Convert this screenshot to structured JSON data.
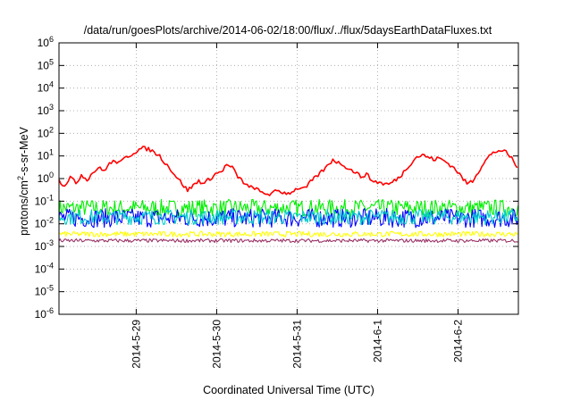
{
  "chart_data": {
    "type": "line",
    "title": "/data/run/goesPlots/archive/2014-06-02/18:00/flux/../flux/5daysEarthDataFluxes.txt",
    "xlabel": "Coordinated Universal Time (UTC)",
    "ylabel": {
      "base": "protons/cm",
      "sup": "2",
      "rest": "-s-sr-MeV"
    },
    "y_scale": "log",
    "ylim": [
      1e-06,
      1000000.0
    ],
    "y_ticks": [
      {
        "base": "10",
        "exp": "6",
        "value": 1000000.0
      },
      {
        "base": "10",
        "exp": "5",
        "value": 100000.0
      },
      {
        "base": "10",
        "exp": "4",
        "value": 10000.0
      },
      {
        "base": "10",
        "exp": "3",
        "value": 1000.0
      },
      {
        "base": "10",
        "exp": "2",
        "value": 100.0
      },
      {
        "base": "10",
        "exp": "1",
        "value": 10.0
      },
      {
        "base": "10",
        "exp": "0",
        "value": 1.0
      },
      {
        "base": "10",
        "exp": "-1",
        "value": 0.1
      },
      {
        "base": "10",
        "exp": "-2",
        "value": 0.01
      },
      {
        "base": "10",
        "exp": "-3",
        "value": 0.001
      },
      {
        "base": "10",
        "exp": "-4",
        "value": 0.0001
      },
      {
        "base": "10",
        "exp": "-5",
        "value": 1e-05
      },
      {
        "base": "10",
        "exp": "-6",
        "value": 1e-06
      }
    ],
    "xlim": [
      "2014-05-28 00:58",
      "2014-06-02 18:00"
    ],
    "x_ticks": [
      "2014-5-29",
      "2014-5-30",
      "2014-5-31",
      "2014-6-1",
      "2014-6-2"
    ],
    "grid": true,
    "legend": "none",
    "series": [
      {
        "color": "#ff0000",
        "x": [
          "2014-05-28 01:00",
          "2014-05-28 02:40",
          "2014-05-28 04:20",
          "2014-05-28 06:00",
          "2014-05-28 07:40",
          "2014-05-28 09:20",
          "2014-05-28 11:00",
          "2014-05-28 12:40",
          "2014-05-28 14:20",
          "2014-05-28 16:00",
          "2014-05-28 17:40",
          "2014-05-28 19:20",
          "2014-05-28 21:00",
          "2014-05-28 22:40",
          "2014-05-29 00:20",
          "2014-05-29 02:00",
          "2014-05-29 03:40",
          "2014-05-29 05:20",
          "2014-05-29 07:00",
          "2014-05-29 08:40",
          "2014-05-29 10:20",
          "2014-05-29 12:00",
          "2014-05-29 13:40",
          "2014-05-29 15:20",
          "2014-05-29 17:00",
          "2014-05-29 18:40",
          "2014-05-29 20:20",
          "2014-05-29 22:00",
          "2014-05-29 23:40",
          "2014-05-30 01:20",
          "2014-05-30 03:00",
          "2014-05-30 04:40",
          "2014-05-30 06:20",
          "2014-05-30 08:00",
          "2014-05-30 09:40",
          "2014-05-30 11:20",
          "2014-05-30 13:00",
          "2014-05-30 14:40",
          "2014-05-30 16:20",
          "2014-05-30 18:00",
          "2014-05-30 19:40",
          "2014-05-30 21:20",
          "2014-05-30 23:00",
          "2014-05-31 00:40",
          "2014-05-31 02:20",
          "2014-05-31 04:00",
          "2014-05-31 05:40",
          "2014-05-31 07:20",
          "2014-05-31 09:00",
          "2014-05-31 10:40",
          "2014-05-31 12:20",
          "2014-05-31 14:00",
          "2014-05-31 15:40",
          "2014-05-31 17:20",
          "2014-05-31 19:00",
          "2014-05-31 20:40",
          "2014-05-31 22:20",
          "2014-06-01 00:00",
          "2014-06-01 01:40",
          "2014-06-01 03:20",
          "2014-06-01 05:00",
          "2014-06-01 06:40",
          "2014-06-01 08:20",
          "2014-06-01 10:00",
          "2014-06-01 11:40",
          "2014-06-01 13:20",
          "2014-06-01 15:00",
          "2014-06-01 16:40",
          "2014-06-01 18:20",
          "2014-06-01 20:00",
          "2014-06-01 21:40",
          "2014-06-01 23:20",
          "2014-06-02 01:00",
          "2014-06-02 02:40",
          "2014-06-02 04:20",
          "2014-06-02 06:00",
          "2014-06-02 07:40",
          "2014-06-02 09:20",
          "2014-06-02 11:00",
          "2014-06-02 12:40",
          "2014-06-02 14:20",
          "2014-06-02 16:00",
          "2014-06-02 17:40"
        ],
        "values": [
          0.8,
          0.5,
          1.2,
          0.6,
          1.5,
          0.9,
          1.8,
          3.0,
          2.2,
          4.5,
          6.0,
          5.0,
          9.0,
          12.0,
          18.0,
          22.0,
          20.0,
          15.0,
          10.0,
          5.0,
          2.5,
          1.2,
          0.6,
          0.3,
          0.5,
          0.8,
          0.6,
          1.0,
          1.6,
          2.0,
          4.0,
          3.0,
          1.2,
          0.7,
          0.4,
          0.4,
          0.25,
          0.22,
          0.2,
          0.3,
          0.25,
          0.22,
          0.3,
          0.4,
          0.35,
          0.7,
          1.2,
          2.0,
          3.5,
          7.0,
          5.0,
          4.0,
          2.5,
          2.0,
          1.2,
          1.6,
          0.8,
          0.7,
          0.6,
          0.55,
          0.8,
          1.2,
          2.5,
          5.0,
          9.0,
          11.0,
          9.0,
          7.0,
          8.0,
          6.0,
          4.0,
          2.5,
          1.2,
          0.6,
          0.8,
          2.0,
          5.0,
          10.0,
          15.0,
          18.0,
          14.0,
          8.0,
          3.0
        ]
      },
      {
        "color": "#00ee00",
        "x": [
          "2014-05-28 01:00",
          "2014-05-29 00:00",
          "2014-05-30 00:00",
          "2014-05-31 00:00",
          "2014-06-01 00:00",
          "2014-06-02 00:00",
          "2014-06-02 18:00"
        ],
        "values": [
          0.05,
          0.05,
          0.05,
          0.05,
          0.05,
          0.05,
          0.05
        ]
      },
      {
        "color": "#00cccc",
        "x": [
          "2014-05-28 01:00",
          "2014-05-29 00:00",
          "2014-05-30 00:00",
          "2014-05-31 00:00",
          "2014-06-01 00:00",
          "2014-06-02 00:00",
          "2014-06-02 18:00"
        ],
        "values": [
          0.02,
          0.02,
          0.02,
          0.02,
          0.02,
          0.02,
          0.02
        ]
      },
      {
        "color": "#0000ff",
        "x": [
          "2014-05-28 01:00",
          "2014-05-29 00:00",
          "2014-05-30 00:00",
          "2014-05-31 00:00",
          "2014-06-01 00:00",
          "2014-06-02 00:00",
          "2014-06-02 18:00"
        ],
        "values": [
          0.018,
          0.018,
          0.018,
          0.018,
          0.018,
          0.018,
          0.018
        ]
      },
      {
        "color": "#ffff00",
        "x": [
          "2014-05-28 01:00",
          "2014-05-29 00:00",
          "2014-05-30 00:00",
          "2014-05-31 00:00",
          "2014-06-01 00:00",
          "2014-06-02 00:00",
          "2014-06-02 18:00"
        ],
        "values": [
          0.0035,
          0.0035,
          0.0035,
          0.0035,
          0.0035,
          0.0035,
          0.0035
        ]
      },
      {
        "color": "#993366",
        "x": [
          "2014-05-28 01:00",
          "2014-05-29 00:00",
          "2014-05-30 00:00",
          "2014-05-31 00:00",
          "2014-06-01 00:00",
          "2014-06-02 00:00",
          "2014-06-02 18:00"
        ],
        "values": [
          0.0018,
          0.0018,
          0.0018,
          0.0018,
          0.0018,
          0.0018,
          0.0018
        ]
      }
    ]
  }
}
